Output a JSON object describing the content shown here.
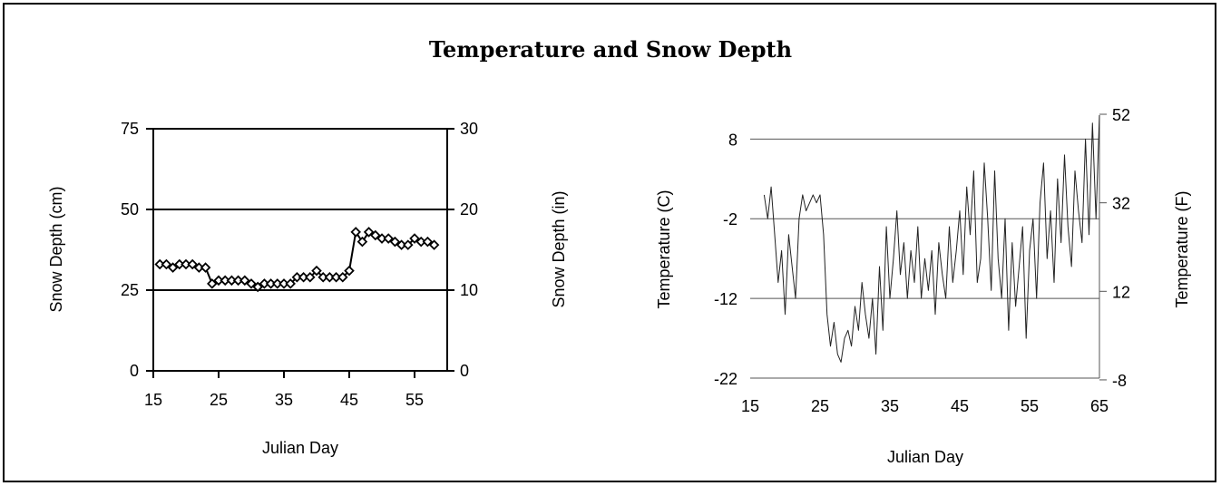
{
  "page": {
    "title": "Temperature and Snow Depth"
  },
  "chart_data": [
    {
      "type": "line",
      "xlabel": "Julian Day",
      "ylabel": "Snow Depth (cm)",
      "y2label": "Snow Depth (in)",
      "xlim": [
        15,
        60
      ],
      "ylim": [
        0,
        75
      ],
      "y2lim": [
        0,
        30
      ],
      "xticks": [
        15,
        25,
        35,
        45,
        55
      ],
      "yticks": [
        0,
        25,
        50,
        75
      ],
      "y2ticks": [
        0,
        10,
        20,
        30
      ],
      "gridlines": [
        25,
        50,
        75
      ],
      "x": [
        16,
        17,
        18,
        19,
        20,
        21,
        22,
        23,
        24,
        25,
        26,
        27,
        28,
        29,
        30,
        31,
        32,
        33,
        34,
        35,
        36,
        37,
        38,
        39,
        40,
        41,
        42,
        43,
        44,
        45,
        46,
        47,
        48,
        49,
        50,
        51,
        52,
        53,
        54,
        55,
        56,
        57,
        58
      ],
      "y": [
        33,
        33,
        32,
        33,
        33,
        33,
        32,
        32,
        27,
        28,
        28,
        28,
        28,
        28,
        27,
        26,
        27,
        27,
        27,
        27,
        27,
        29,
        29,
        29,
        31,
        29,
        29,
        29,
        29,
        31,
        43,
        40,
        43,
        42,
        41,
        41,
        40,
        39,
        39,
        41,
        40,
        40,
        39
      ]
    },
    {
      "type": "line",
      "xlabel": "Julian Day",
      "ylabel": "Temperature (C)",
      "y2label": "Temperature (F)",
      "xlim": [
        15,
        65
      ],
      "ylim": [
        -22,
        11
      ],
      "xticks": [
        15,
        25,
        35,
        45,
        55,
        65
      ],
      "yticks": [
        -22,
        -12,
        -2,
        8
      ],
      "y2ticks": [
        -8,
        12,
        32,
        52
      ],
      "gridlines": [
        -12,
        -2,
        8
      ],
      "x": [
        17,
        17.5,
        18,
        18.5,
        19,
        19.5,
        20,
        20.5,
        21,
        21.5,
        22,
        22.5,
        23,
        23.5,
        24,
        24.5,
        25,
        25.5,
        26,
        26.5,
        27,
        27.5,
        28,
        28.5,
        29,
        29.5,
        30,
        30.5,
        31,
        31.5,
        32,
        32.5,
        33,
        33.5,
        34,
        34.5,
        35,
        35.5,
        36,
        36.5,
        37,
        37.5,
        38,
        38.5,
        39,
        39.5,
        40,
        40.5,
        41,
        41.5,
        42,
        42.5,
        43,
        43.5,
        44,
        44.5,
        45,
        45.5,
        46,
        46.5,
        47,
        47.5,
        48,
        48.5,
        49,
        49.5,
        50,
        50.5,
        51,
        51.5,
        52,
        52.5,
        53,
        53.5,
        54,
        54.5,
        55,
        55.5,
        56,
        56.5,
        57,
        57.5,
        58,
        58.5,
        59,
        59.5,
        60,
        60.5,
        61,
        61.5,
        62,
        62.5,
        63,
        63.5,
        64,
        64.5,
        65
      ],
      "y": [
        1,
        -2,
        2,
        -4,
        -10,
        -6,
        -14,
        -4,
        -8,
        -12,
        -2,
        1,
        -1,
        0,
        1,
        0,
        1,
        -4,
        -14,
        -18,
        -15,
        -19,
        -20,
        -17,
        -16,
        -18,
        -13,
        -16,
        -10,
        -14,
        -17,
        -12,
        -19,
        -8,
        -16,
        -3,
        -12,
        -7,
        -1,
        -9,
        -5,
        -12,
        -6,
        -10,
        -3,
        -12,
        -7,
        -11,
        -6,
        -14,
        -5,
        -9,
        -12,
        -3,
        -10,
        -6,
        -1,
        -9,
        2,
        -4,
        4,
        -10,
        -7,
        5,
        -2,
        -11,
        4,
        -7,
        -12,
        -2,
        -16,
        -5,
        -13,
        -8,
        -3,
        -17,
        -6,
        -2,
        -12,
        0,
        5,
        -7,
        -1,
        -10,
        3,
        -5,
        6,
        -3,
        -8,
        4,
        -1,
        -5,
        8,
        -4,
        10,
        -2,
        11
      ]
    }
  ]
}
